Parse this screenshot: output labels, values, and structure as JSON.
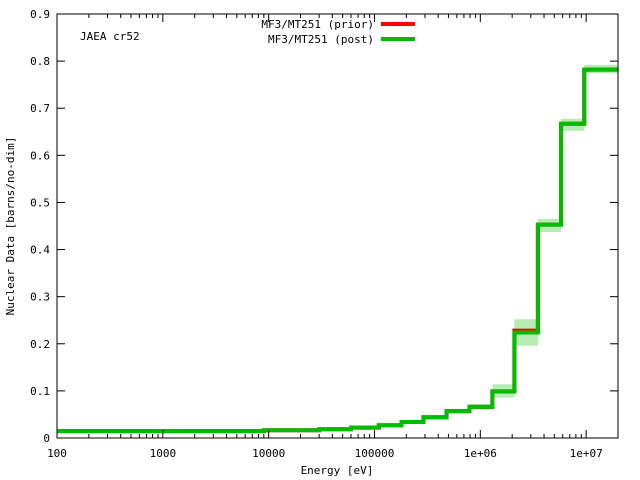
{
  "chart_data": {
    "type": "line",
    "step": true,
    "x_scale": "log",
    "annotation": "JAEA cr52",
    "xlabel": "Energy [eV]",
    "ylabel": "Nuclear Data [barns/no-dim]",
    "xlim": [
      100,
      20000000
    ],
    "ylim": [
      0,
      0.9
    ],
    "x_ticks": [
      {
        "value": 100,
        "label": "100"
      },
      {
        "value": 1000,
        "label": "1000"
      },
      {
        "value": 10000,
        "label": "10000"
      },
      {
        "value": 100000,
        "label": "100000"
      },
      {
        "value": 1000000,
        "label": "1e+06"
      },
      {
        "value": 10000000,
        "label": "1e+07"
      }
    ],
    "y_ticks": [
      {
        "value": 0,
        "label": "0"
      },
      {
        "value": 0.1,
        "label": "0.1"
      },
      {
        "value": 0.2,
        "label": "0.2"
      },
      {
        "value": 0.3,
        "label": "0.3"
      },
      {
        "value": 0.4,
        "label": "0.4"
      },
      {
        "value": 0.5,
        "label": "0.5"
      },
      {
        "value": 0.6,
        "label": "0.6"
      },
      {
        "value": 0.7,
        "label": "0.7"
      },
      {
        "value": 0.8,
        "label": "0.8"
      },
      {
        "value": 0.9,
        "label": "0.9"
      }
    ],
    "legend_position": "top-center",
    "series": [
      {
        "name": "MF3/MT251 (prior)",
        "color": "#ff0000",
        "x": [
          100,
          9000,
          30000,
          60000,
          110000,
          180000,
          290000,
          480000,
          790000,
          1300000,
          2100000,
          3500000,
          5800000,
          9600000,
          20000000
        ],
        "y": [
          0.0145,
          0.0165,
          0.0185,
          0.022,
          0.027,
          0.034,
          0.044,
          0.057,
          0.066,
          0.099,
          0.228,
          0.453,
          0.667,
          0.782,
          0.82
        ]
      },
      {
        "name": "MF3/MT251 (post)",
        "color": "#00bb00",
        "x": [
          100,
          9000,
          30000,
          60000,
          110000,
          180000,
          290000,
          480000,
          790000,
          1300000,
          2100000,
          3500000,
          5800000,
          9600000,
          20000000
        ],
        "y": [
          0.0145,
          0.0165,
          0.0185,
          0.022,
          0.027,
          0.034,
          0.044,
          0.057,
          0.066,
          0.099,
          0.224,
          0.453,
          0.667,
          0.782,
          0.82
        ],
        "band_low": [
          0.0135,
          0.0155,
          0.0175,
          0.02,
          0.025,
          0.031,
          0.04,
          0.052,
          0.06,
          0.086,
          0.196,
          0.437,
          0.652,
          0.774,
          0.8
        ],
        "band_high": [
          0.0155,
          0.0175,
          0.0195,
          0.024,
          0.029,
          0.037,
          0.048,
          0.062,
          0.072,
          0.114,
          0.252,
          0.465,
          0.678,
          0.792,
          0.84
        ],
        "band_color": "#b4ecb4"
      }
    ]
  }
}
